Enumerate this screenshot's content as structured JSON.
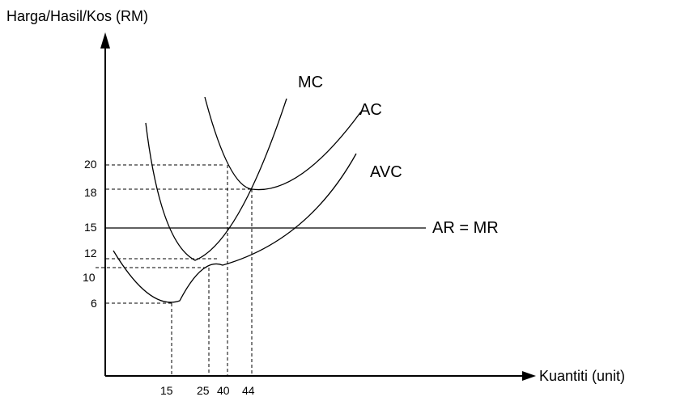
{
  "chart_data": {
    "type": "line",
    "xlabel": "Kuantiti (unit)",
    "ylabel": "Harga/Hasil/Kos (RM)",
    "x_ticks": [
      "15",
      "25",
      "40",
      "44"
    ],
    "y_ticks": [
      "6",
      "10",
      "12",
      "15",
      "18",
      "20"
    ],
    "series": [
      {
        "name": "MC"
      },
      {
        "name": "AC"
      },
      {
        "name": "AVC"
      },
      {
        "name": "AR = MR"
      }
    ],
    "reference_points": [
      {
        "x": 15,
        "y": 6
      },
      {
        "x": 25,
        "y": 11
      },
      {
        "x": 25,
        "y": 12
      },
      {
        "x": 40,
        "y": 20
      },
      {
        "x": 44,
        "y": 18
      }
    ],
    "grid": false
  }
}
